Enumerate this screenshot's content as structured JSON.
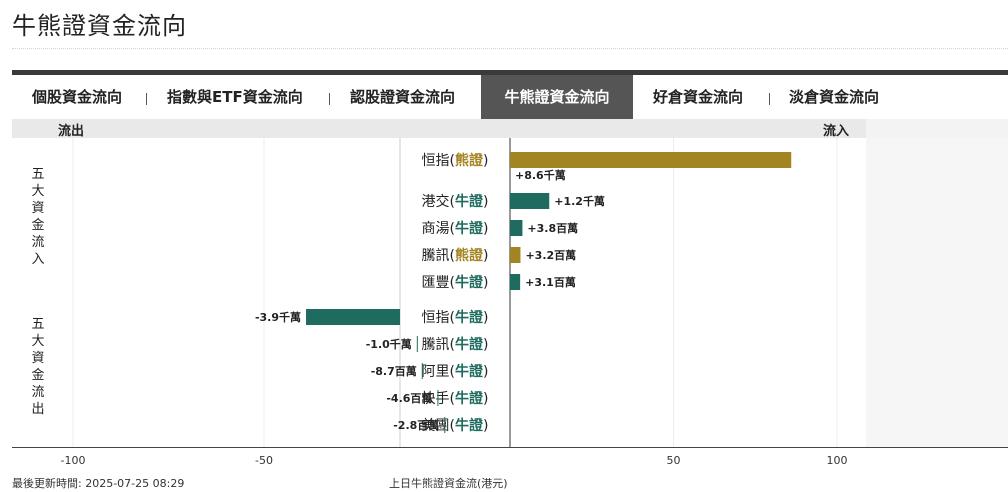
{
  "page": {
    "title": "牛熊證資金流向"
  },
  "tabs": [
    {
      "label": "個股資金流向",
      "active": false
    },
    {
      "label": "指數與ETF資金流向",
      "active": false
    },
    {
      "label": "認股證資金流向",
      "active": false
    },
    {
      "label": "牛熊證資金流向",
      "active": true
    },
    {
      "label": "好倉資金流向",
      "active": false
    },
    {
      "label": "淡倉資金流向",
      "active": false
    }
  ],
  "header": {
    "outflow": "流出",
    "inflow": "流入"
  },
  "groups": {
    "inflow_label": "五大資金流入",
    "outflow_label": "五大資金流出"
  },
  "colors": {
    "bull": "#1f6b5f",
    "bear": "#a38423",
    "grid": "#ececec"
  },
  "chart_data": {
    "type": "bar",
    "orientation": "horizontal",
    "xlabel": "上日牛熊證資金流(港元)",
    "xlim": [
      -100,
      100
    ],
    "xticks": [
      -100,
      -50,
      50,
      100
    ],
    "grid": true,
    "categories": [
      "恒指(熊證)",
      "港交(牛證)",
      "商湯(牛證)",
      "騰訊(熊證)",
      "匯豐(牛證)",
      "恒指(牛證)",
      "騰訊(牛證)",
      "阿里(牛證)",
      "快手(牛證)",
      "美團(牛證)"
    ],
    "rows": [
      {
        "underlying": "恒指",
        "type": "熊證",
        "group": "inflow",
        "value": 86,
        "label": "+8.6千萬"
      },
      {
        "underlying": "港交",
        "type": "牛證",
        "group": "inflow",
        "value": 12,
        "label": "+1.2千萬"
      },
      {
        "underlying": "商湯",
        "type": "牛證",
        "group": "inflow",
        "value": 3.8,
        "label": "+3.8百萬"
      },
      {
        "underlying": "騰訊",
        "type": "熊證",
        "group": "inflow",
        "value": 3.2,
        "label": "+3.2百萬"
      },
      {
        "underlying": "匯豐",
        "type": "牛證",
        "group": "inflow",
        "value": 3.1,
        "label": "+3.1百萬"
      },
      {
        "underlying": "恒指",
        "type": "牛證",
        "group": "outflow",
        "value": -39,
        "label": "-3.9千萬"
      },
      {
        "underlying": "騰訊",
        "type": "牛證",
        "group": "outflow",
        "value": -10,
        "label": "-1.0千萬"
      },
      {
        "underlying": "阿里",
        "type": "牛證",
        "group": "outflow",
        "value": -8.7,
        "label": "-8.7百萬"
      },
      {
        "underlying": "快手",
        "type": "牛證",
        "group": "outflow",
        "value": -4.6,
        "label": "-4.6百萬"
      },
      {
        "underlying": "美團",
        "type": "牛證",
        "group": "outflow",
        "value": -2.8,
        "label": "-2.8百萬"
      }
    ]
  },
  "footer": {
    "updated": "最後更新時間: 2025-07-25 08:29"
  }
}
